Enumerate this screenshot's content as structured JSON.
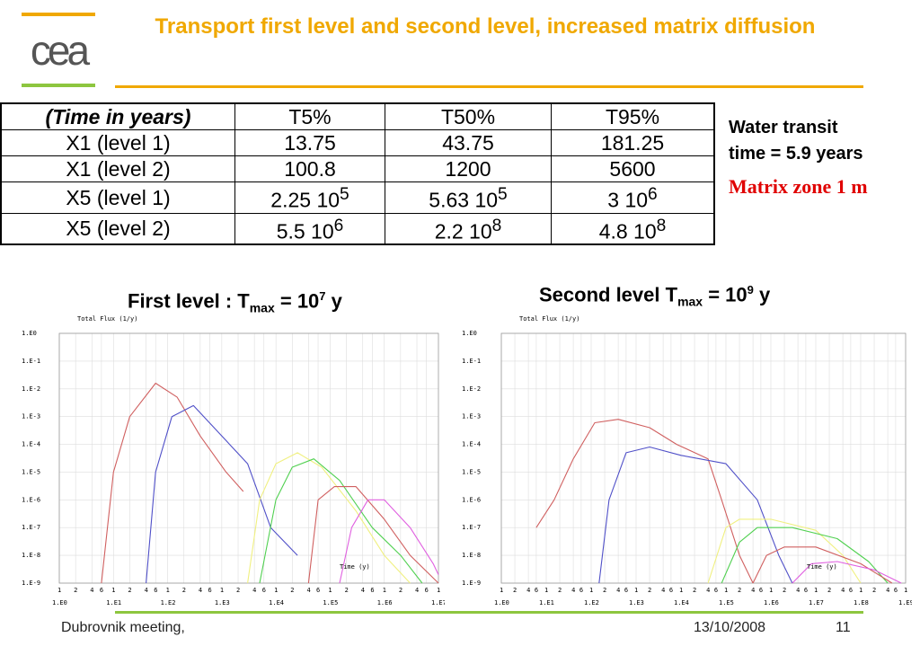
{
  "header": {
    "title": "Transport first level and second level, increased matrix diffusion"
  },
  "logo": {
    "text": "cea",
    "bar_color": "#f0a800",
    "accent_color": "#8dc63f"
  },
  "table": {
    "headers": [
      "(Time in years)",
      "T5%",
      "T50%",
      "T95%"
    ],
    "rows": [
      {
        "label": "X1 (level 1)",
        "t5": "13.75",
        "t50": "43.75",
        "t95": "181.25"
      },
      {
        "label": "X1 (level 2)",
        "t5": "100.8",
        "t50": "1200",
        "t95": "5600"
      },
      {
        "label": "X5 (level 1)",
        "t5": "2.25 10",
        "t5_exp": "5",
        "t50": "5.63 10",
        "t50_exp": "5",
        "t95": "3 10",
        "t95_exp": "6"
      },
      {
        "label": "X5 (level 2)",
        "t5": "5.5 10",
        "t5_exp": "6",
        "t50": "2.2 10",
        "t50_exp": "8",
        "t95": "4.8 10",
        "t95_exp": "8"
      }
    ]
  },
  "side_note": {
    "line1": "Water transit",
    "line2": "time = 5.9 years",
    "matrix": "Matrix zone 1 m"
  },
  "captions": {
    "first": {
      "pre": "First level : T",
      "sub": "max",
      "mid": " = 10",
      "sup": "7",
      "post": " y"
    },
    "second": {
      "pre": "Second level T",
      "sub": "max",
      "mid": " = 10",
      "sup": "9",
      "post": " y"
    }
  },
  "chart_data": [
    {
      "type": "line",
      "title": "Total Flux (1/y)",
      "xlabel": "Time (y)",
      "x_scale": "log",
      "y_scale": "log",
      "xlim": [
        1,
        10000000
      ],
      "ylim": [
        1e-09,
        1
      ],
      "y_tick_labels": [
        "1.E0",
        "1.E-1",
        "1.E-2",
        "1.E-3",
        "1.E-4",
        "1.E-5",
        "1.E-6",
        "1.E-7",
        "1.E-8",
        "1.E-9"
      ],
      "x_tick_labels": [
        "1.E0",
        "1.E1",
        "1.E2",
        "1.E3",
        "1.E4",
        "1.E5",
        "1.E6",
        "1.E7"
      ],
      "series": [
        {
          "color": "#d06060",
          "points": [
            [
              6,
              1e-09
            ],
            [
              10,
              1e-05
            ],
            [
              20,
              0.001
            ],
            [
              60,
              0.016
            ],
            [
              150,
              0.005
            ],
            [
              400,
              0.0002
            ],
            [
              1200,
              1e-05
            ],
            [
              2500,
              2e-06
            ]
          ]
        },
        {
          "color": "#5050c8",
          "points": [
            [
              40,
              1e-09
            ],
            [
              60,
              1e-05
            ],
            [
              120,
              0.001
            ],
            [
              300,
              0.0025
            ],
            [
              1000,
              0.0002
            ],
            [
              3000,
              2e-05
            ],
            [
              8000,
              1e-07
            ],
            [
              25000,
              1e-08
            ]
          ]
        },
        {
          "color": "#f0f080",
          "points": [
            [
              3000,
              1e-09
            ],
            [
              5000,
              1e-06
            ],
            [
              10000,
              2e-05
            ],
            [
              25000,
              5e-05
            ],
            [
              70000,
              1.5e-05
            ],
            [
              300000,
              4e-07
            ],
            [
              1000000,
              1e-08
            ],
            [
              3000000,
              1e-09
            ]
          ]
        },
        {
          "color": "#50d050",
          "points": [
            [
              5000,
              1e-09
            ],
            [
              10000,
              1e-06
            ],
            [
              20000,
              1.5e-05
            ],
            [
              50000,
              3e-05
            ],
            [
              150000,
              5e-06
            ],
            [
              600000,
              1e-07
            ],
            [
              2000000,
              1e-08
            ],
            [
              5000000,
              1e-09
            ]
          ]
        },
        {
          "color": "#d06060",
          "points": [
            [
              40000,
              1e-09
            ],
            [
              60000,
              1e-06
            ],
            [
              120000,
              3e-06
            ],
            [
              300000,
              3e-06
            ],
            [
              1000000,
              2e-07
            ],
            [
              3000000,
              1e-08
            ],
            [
              10000000,
              1e-09
            ]
          ]
        },
        {
          "color": "#e060e0",
          "points": [
            [
              150000,
              1e-09
            ],
            [
              250000,
              1e-07
            ],
            [
              500000,
              1e-06
            ],
            [
              1000000,
              1e-06
            ],
            [
              3000000,
              1e-07
            ],
            [
              8000000,
              5e-09
            ],
            [
              10000000,
              2e-09
            ]
          ]
        }
      ]
    },
    {
      "type": "line",
      "title": "Total Flux (1/y)",
      "xlabel": "Time (y)",
      "x_scale": "log",
      "y_scale": "log",
      "xlim": [
        1,
        1000000000
      ],
      "ylim": [
        1e-09,
        1
      ],
      "y_tick_labels": [
        "1.E0",
        "1.E-1",
        "1.E-2",
        "1.E-3",
        "1.E-4",
        "1.E-5",
        "1.E-6",
        "1.E-7",
        "1.E-8",
        "1.E-9"
      ],
      "x_tick_labels": [
        "1.E0",
        "1.E1",
        "1.E2",
        "1.E3",
        "1.E4",
        "1.E5",
        "1.E6",
        "1.E7",
        "1.E8",
        "1.E9"
      ],
      "series": [
        {
          "color": "#d06060",
          "points": [
            [
              6,
              1e-07
            ],
            [
              15,
              1e-06
            ],
            [
              40,
              3e-05
            ],
            [
              120,
              0.0006
            ],
            [
              400,
              0.0008
            ],
            [
              2000,
              0.0004
            ],
            [
              8000,
              0.0001
            ],
            [
              40000,
              3e-05
            ],
            [
              80000,
              1e-06
            ],
            [
              200000,
              1e-08
            ],
            [
              400000,
              1e-09
            ]
          ]
        },
        {
          "color": "#5050c8",
          "points": [
            [
              150,
              1e-09
            ],
            [
              250,
              1e-06
            ],
            [
              600,
              5e-05
            ],
            [
              2000,
              8e-05
            ],
            [
              10000,
              4e-05
            ],
            [
              100000,
              2e-05
            ],
            [
              500000,
              1e-06
            ],
            [
              1500000,
              1e-08
            ],
            [
              3000000,
              1e-09
            ]
          ]
        },
        {
          "color": "#f0f080",
          "points": [
            [
              40000,
              1e-09
            ],
            [
              100000,
              1e-07
            ],
            [
              200000,
              2e-07
            ],
            [
              1000000,
              2e-07
            ],
            [
              10000000,
              8e-08
            ],
            [
              40000000,
              1e-08
            ],
            [
              100000000,
              1e-09
            ]
          ]
        },
        {
          "color": "#50d050",
          "points": [
            [
              80000,
              1e-09
            ],
            [
              200000,
              3e-08
            ],
            [
              500000,
              1e-07
            ],
            [
              3000000,
              1e-07
            ],
            [
              30000000,
              4e-08
            ],
            [
              150000000,
              6e-09
            ],
            [
              400000000,
              1e-09
            ]
          ]
        },
        {
          "color": "#d06060",
          "points": [
            [
              400000,
              1e-09
            ],
            [
              800000,
              1e-08
            ],
            [
              2000000,
              2e-08
            ],
            [
              10000000,
              2e-08
            ],
            [
              100000000,
              5e-09
            ],
            [
              500000000,
              1e-09
            ]
          ]
        },
        {
          "color": "#e060e0",
          "points": [
            [
              3000000,
              1e-09
            ],
            [
              8000000,
              5e-09
            ],
            [
              30000000,
              6e-09
            ],
            [
              200000000,
              3e-09
            ],
            [
              800000000,
              1e-09
            ]
          ]
        }
      ]
    }
  ],
  "footer": {
    "left": "Dubrovnik meeting,",
    "date": "13/10/2008",
    "page": "11"
  }
}
